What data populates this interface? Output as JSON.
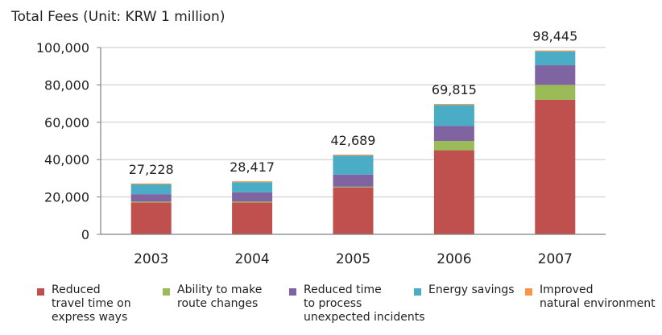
{
  "chart_data": {
    "type": "bar",
    "stacked": true,
    "title": "Total Fees (Unit: KRW 1 million)",
    "xlabel": "",
    "ylabel": "",
    "ylim": [
      0,
      100000
    ],
    "yticks": [
      "0",
      "20,000",
      "40,000",
      "60,000",
      "80,000",
      "100,000"
    ],
    "ytick_values": [
      0,
      20000,
      40000,
      60000,
      80000,
      100000
    ],
    "grid": true,
    "legend_position": "bottom",
    "categories": [
      "2003",
      "2004",
      "2005",
      "2006",
      "2007"
    ],
    "totals": [
      27228,
      28417,
      42689,
      69815,
      98445
    ],
    "total_labels": [
      "27,228",
      "28,417",
      "42,689",
      "69,815",
      "98,445"
    ],
    "series": [
      {
        "name": "Reduced\ntravel time on\nexpress ways",
        "color": "#c0504d",
        "values": [
          17000,
          17000,
          25000,
          45000,
          72000
        ]
      },
      {
        "name": "Ability to make\nroute changes",
        "color": "#9bbb59",
        "values": [
          500,
          500,
          500,
          5000,
          8000
        ]
      },
      {
        "name": "Reduced time\nto process\nunexpected incidents",
        "color": "#8064a2",
        "values": [
          4000,
          5000,
          6500,
          8000,
          10500
        ]
      },
      {
        "name": "Energy savings",
        "color": "#4bacc6",
        "values": [
          5228,
          5417,
          10189,
          11315,
          7445
        ]
      },
      {
        "name": "Improved\nnatural environment",
        "color": "#f79646",
        "values": [
          500,
          500,
          500,
          500,
          500
        ]
      }
    ]
  }
}
